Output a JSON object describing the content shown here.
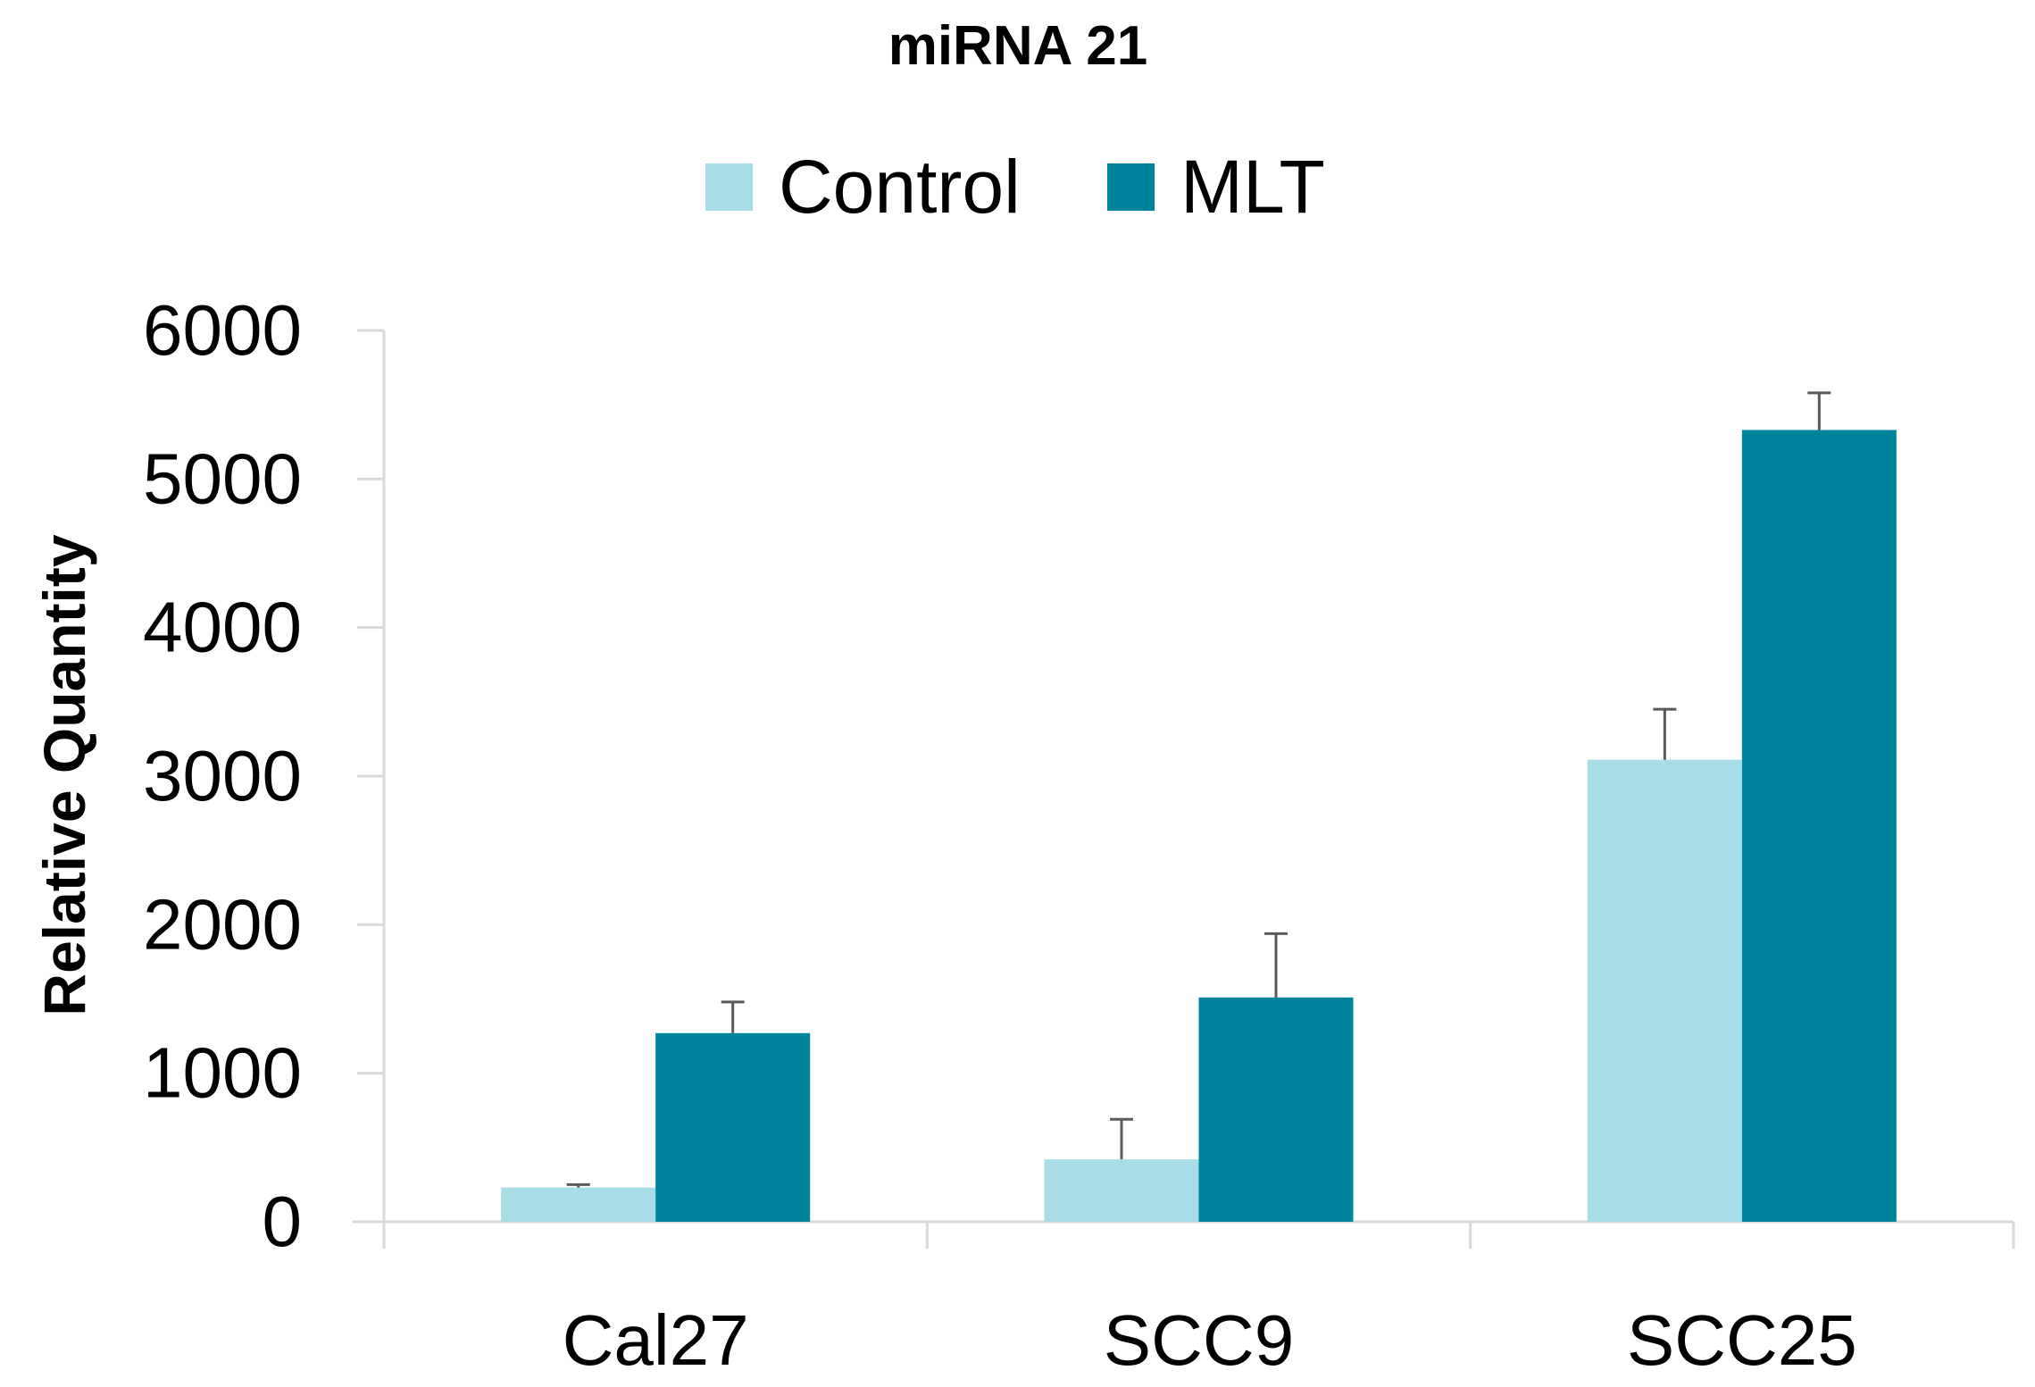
{
  "chart_data": {
    "type": "bar",
    "title": "miRNA 21",
    "xlabel": "",
    "ylabel": "Relative Quantity",
    "ylim": [
      0,
      6000
    ],
    "yticks": [
      0,
      1000,
      2000,
      3000,
      4000,
      5000,
      6000
    ],
    "categories": [
      "Cal27",
      "SCC9",
      "SCC25"
    ],
    "series": [
      {
        "name": "Control",
        "color": "#a8dde8",
        "values": [
          230,
          420,
          3110
        ],
        "errors": [
          20,
          270,
          340
        ]
      },
      {
        "name": "MLT",
        "color": "#00849e",
        "values": [
          1270,
          1510,
          5330
        ],
        "errors": [
          210,
          430,
          250
        ]
      }
    ],
    "legend_position": "top-center",
    "grid": false
  },
  "colors": {
    "axis": "#d9d9d9",
    "error_bar": "#595959",
    "text": "#000000"
  }
}
